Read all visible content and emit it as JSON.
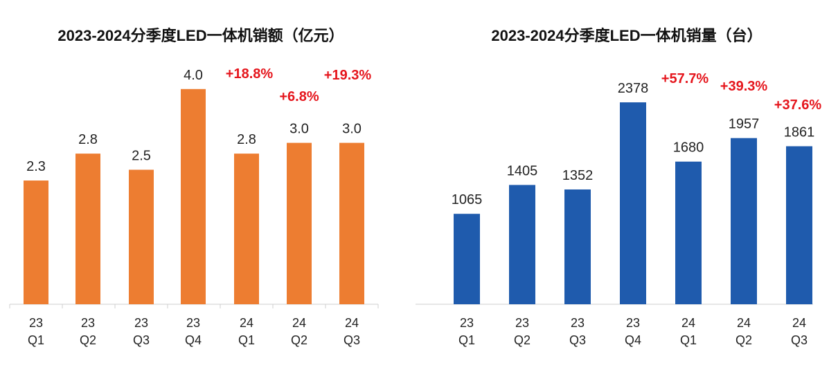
{
  "chart_data": [
    {
      "type": "bar",
      "title": "2023-2024分季度LED一体机销额（亿元）",
      "categories": [
        [
          "23",
          "Q1"
        ],
        [
          "23",
          "Q2"
        ],
        [
          "23",
          "Q3"
        ],
        [
          "23",
          "Q4"
        ],
        [
          "24",
          "Q1"
        ],
        [
          "24",
          "Q2"
        ],
        [
          "24",
          "Q3"
        ]
      ],
      "values": [
        2.3,
        2.8,
        2.5,
        4.0,
        2.8,
        3.0,
        3.0
      ],
      "value_labels": [
        "2.3",
        "2.8",
        "2.5",
        "4.0",
        "2.8",
        "3.0",
        "3.0"
      ],
      "growth_labels": [
        "+18.8%",
        "+6.8%",
        "+19.3%"
      ],
      "ylim": [
        0,
        4.28
      ],
      "bar_color": "#ed7d31",
      "grid": false
    },
    {
      "type": "bar",
      "title": "2023-2024分季度LED一体机销量（台）",
      "categories": [
        [
          "23",
          "Q1"
        ],
        [
          "23",
          "Q2"
        ],
        [
          "23",
          "Q3"
        ],
        [
          "23",
          "Q4"
        ],
        [
          "24",
          "Q1"
        ],
        [
          "24",
          "Q2"
        ],
        [
          "24",
          "Q3"
        ]
      ],
      "values": [
        1065,
        1405,
        1352,
        2378,
        1680,
        1957,
        1861
      ],
      "value_labels": [
        "1065",
        "1405",
        "1352",
        "2378",
        "1680",
        "1957",
        "1861"
      ],
      "growth_labels": [
        "+57.7%",
        "+39.3%",
        "+37.6%"
      ],
      "ylim": [
        0,
        2378
      ],
      "bar_color": "#1f5bad",
      "grid": false
    }
  ]
}
